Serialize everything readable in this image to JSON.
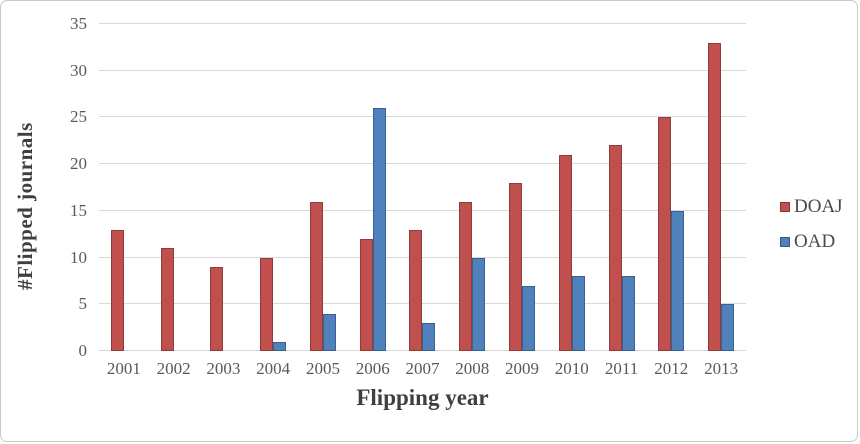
{
  "chart_data": {
    "type": "bar",
    "title": "",
    "xlabel": "Flipping year",
    "ylabel": "#Flipped journals",
    "categories": [
      "2001",
      "2002",
      "2003",
      "2004",
      "2005",
      "2006",
      "2007",
      "2008",
      "2009",
      "2010",
      "2011",
      "2012",
      "2013"
    ],
    "series": [
      {
        "name": "DOAJ",
        "color": "#c0504d",
        "values": [
          13,
          11,
          9,
          10,
          16,
          12,
          13,
          16,
          18,
          21,
          22,
          25,
          33
        ]
      },
      {
        "name": "OAD",
        "color": "#4f81bd",
        "values": [
          0,
          0,
          0,
          1,
          4,
          26,
          3,
          10,
          7,
          8,
          8,
          15,
          5
        ]
      }
    ],
    "ylim": [
      0,
      35
    ],
    "yticks": [
      0,
      5,
      10,
      15,
      20,
      25,
      30,
      35
    ],
    "grid": true,
    "gridline_color": "#d9d9d9",
    "legend_position": "right",
    "axis_tick_color": "#595959",
    "axis_title_color": "#3f3f3f",
    "background_color": "#ffffff"
  }
}
